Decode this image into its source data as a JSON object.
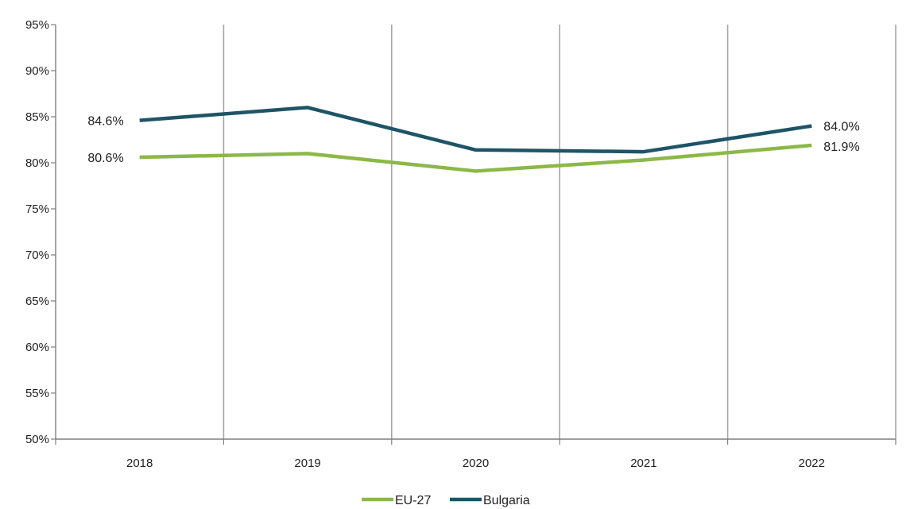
{
  "chart_data": {
    "type": "line",
    "title": "",
    "xlabel": "",
    "ylabel": "",
    "categories": [
      "2018",
      "2019",
      "2020",
      "2021",
      "2022"
    ],
    "ylim": [
      50,
      95
    ],
    "y_ticks": [
      50,
      55,
      60,
      65,
      70,
      75,
      80,
      85,
      90,
      95
    ],
    "y_tick_labels": [
      "50%",
      "55%",
      "60%",
      "65%",
      "70%",
      "75%",
      "80%",
      "85%",
      "90%",
      "95%"
    ],
    "grid": "vertical",
    "legend_position": "bottom",
    "series": [
      {
        "name": "EU-27",
        "color": "#8cb847",
        "values": [
          80.6,
          81.0,
          79.1,
          80.3,
          81.9
        ],
        "labels": [
          "80.6%",
          "",
          "",
          "",
          "81.9%"
        ]
      },
      {
        "name": "Bulgaria",
        "color": "#1f5467",
        "values": [
          84.6,
          86.0,
          81.4,
          81.2,
          84.0
        ],
        "labels": [
          "84.6%",
          "",
          "",
          "",
          "84.0%"
        ]
      }
    ]
  }
}
